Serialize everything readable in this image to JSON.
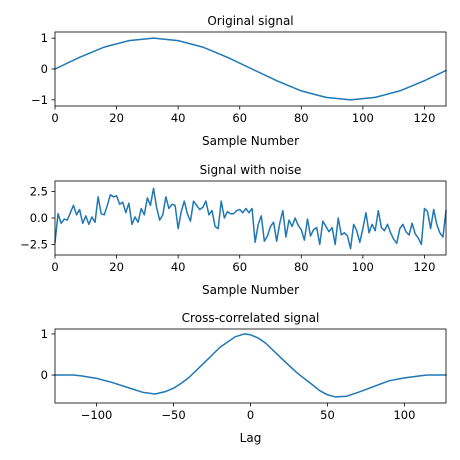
{
  "figure": {
    "background": "#ffffff",
    "line_color": "#1f77b4"
  },
  "chart_data": [
    {
      "type": "line",
      "title": "Original signal",
      "xlabel": "Sample Number",
      "ylabel": "",
      "xlim": [
        0,
        127
      ],
      "ylim": [
        -1.2,
        1.2
      ],
      "xticks": [
        0,
        20,
        40,
        60,
        80,
        100,
        120
      ],
      "yticks": [
        -1,
        0,
        1
      ],
      "grid": false,
      "series": [
        {
          "x": [
            0,
            8,
            16,
            24,
            32,
            40,
            48,
            56,
            64,
            72,
            80,
            88,
            96,
            104,
            112,
            120,
            127
          ],
          "values": [
            0.0,
            0.38,
            0.71,
            0.92,
            1.0,
            0.92,
            0.71,
            0.38,
            0.0,
            -0.38,
            -0.71,
            -0.92,
            -1.0,
            -0.92,
            -0.71,
            -0.38,
            -0.05
          ]
        }
      ]
    },
    {
      "type": "line",
      "title": "Signal with noise",
      "xlabel": "Sample Number",
      "ylabel": "",
      "xlim": [
        0,
        127
      ],
      "ylim": [
        -3.5,
        3.5
      ],
      "xticks": [
        0,
        20,
        40,
        60,
        80,
        100,
        120
      ],
      "yticks": [
        -2.5,
        0.0,
        2.5
      ],
      "grid": false,
      "series": [
        {
          "x": [
            0,
            1,
            2,
            3,
            4,
            5,
            6,
            7,
            8,
            9,
            10,
            11,
            12,
            13,
            14,
            15,
            16,
            17,
            18,
            19,
            20,
            21,
            22,
            23,
            24,
            25,
            26,
            27,
            28,
            29,
            30,
            31,
            32,
            33,
            34,
            35,
            36,
            37,
            38,
            39,
            40,
            41,
            42,
            43,
            44,
            45,
            46,
            47,
            48,
            49,
            50,
            51,
            52,
            53,
            54,
            55,
            56,
            57,
            58,
            59,
            60,
            61,
            62,
            63,
            64,
            65,
            66,
            67,
            68,
            69,
            70,
            71,
            72,
            73,
            74,
            75,
            76,
            77,
            78,
            79,
            80,
            81,
            82,
            83,
            84,
            85,
            86,
            87,
            88,
            89,
            90,
            91,
            92,
            93,
            94,
            95,
            96,
            97,
            98,
            99,
            100,
            101,
            102,
            103,
            104,
            105,
            106,
            107,
            108,
            109,
            110,
            111,
            112,
            113,
            114,
            115,
            116,
            117,
            118,
            119,
            120,
            121,
            122,
            123,
            124,
            125,
            126,
            127
          ],
          "values": [
            -2.3,
            0.4,
            -0.5,
            -0.1,
            -0.2,
            0.5,
            1.2,
            0.3,
            0.8,
            -0.5,
            0.2,
            -0.6,
            0.1,
            -0.4,
            2.0,
            0.4,
            0.3,
            1.2,
            2.2,
            2.0,
            2.1,
            1.3,
            1.5,
            0.5,
            1.4,
            -0.6,
            0.1,
            -0.4,
            0.9,
            0.3,
            1.9,
            1.2,
            2.8,
            1.0,
            -0.2,
            0.3,
            2.0,
            0.9,
            1.3,
            1.2,
            -1.0,
            0.6,
            1.6,
            0.4,
            -0.3,
            1.6,
            1.2,
            0.8,
            1.0,
            1.6,
            0.3,
            0.7,
            -0.8,
            -1.0,
            1.6,
            0.0,
            0.6,
            0.4,
            0.4,
            0.7,
            0.8,
            0.5,
            0.9,
            0.5,
            0.9,
            -2.3,
            -0.6,
            0.2,
            -2.2,
            -1.7,
            -0.8,
            -0.4,
            -2.2,
            -0.5,
            0.7,
            -1.8,
            -0.2,
            -0.8,
            0.0,
            -0.7,
            -1.1,
            -2.1,
            -0.1,
            -1.7,
            -1.1,
            -0.9,
            -2.5,
            -0.3,
            -0.8,
            -1.3,
            -0.9,
            -2.5,
            0.0,
            -1.6,
            -1.4,
            -1.7,
            -2.9,
            -0.6,
            -1.2,
            -2.3,
            -1.0,
            0.5,
            -1.4,
            -0.6,
            -1.2,
            0.7,
            -0.9,
            -1.2,
            -0.6,
            -1.4,
            -2.0,
            -2.4,
            -1.0,
            -0.6,
            -1.3,
            -1.6,
            -0.5,
            -1.5,
            -1.9,
            -2.5,
            0.9,
            0.6,
            -1.0,
            0.8,
            -0.6,
            -1.4,
            -1.8,
            0.7
          ]
        }
      ]
    },
    {
      "type": "line",
      "title": "Cross-correlated signal",
      "xlabel": "Lag",
      "ylabel": "",
      "xlim": [
        -127,
        127
      ],
      "ylim": [
        -0.68,
        1.12
      ],
      "xticks": [
        -100,
        -50,
        0,
        50,
        100
      ],
      "yticks": [
        0,
        1
      ],
      "grid": false,
      "series": [
        {
          "x": [
            -127,
            -115,
            -110,
            -100,
            -90,
            -80,
            -70,
            -62,
            -55,
            -50,
            -45,
            -40,
            -30,
            -20,
            -10,
            -4,
            0,
            5,
            10,
            20,
            30,
            40,
            45,
            50,
            55,
            62,
            70,
            80,
            90,
            100,
            110,
            115,
            127
          ],
          "values": [
            0.0,
            0.0,
            -0.02,
            -0.08,
            -0.18,
            -0.3,
            -0.42,
            -0.46,
            -0.4,
            -0.32,
            -0.2,
            -0.06,
            0.3,
            0.67,
            0.93,
            1.0,
            0.98,
            0.9,
            0.77,
            0.41,
            0.06,
            -0.23,
            -0.38,
            -0.48,
            -0.53,
            -0.52,
            -0.42,
            -0.28,
            -0.14,
            -0.07,
            -0.02,
            0.0,
            0.0
          ]
        }
      ]
    }
  ]
}
